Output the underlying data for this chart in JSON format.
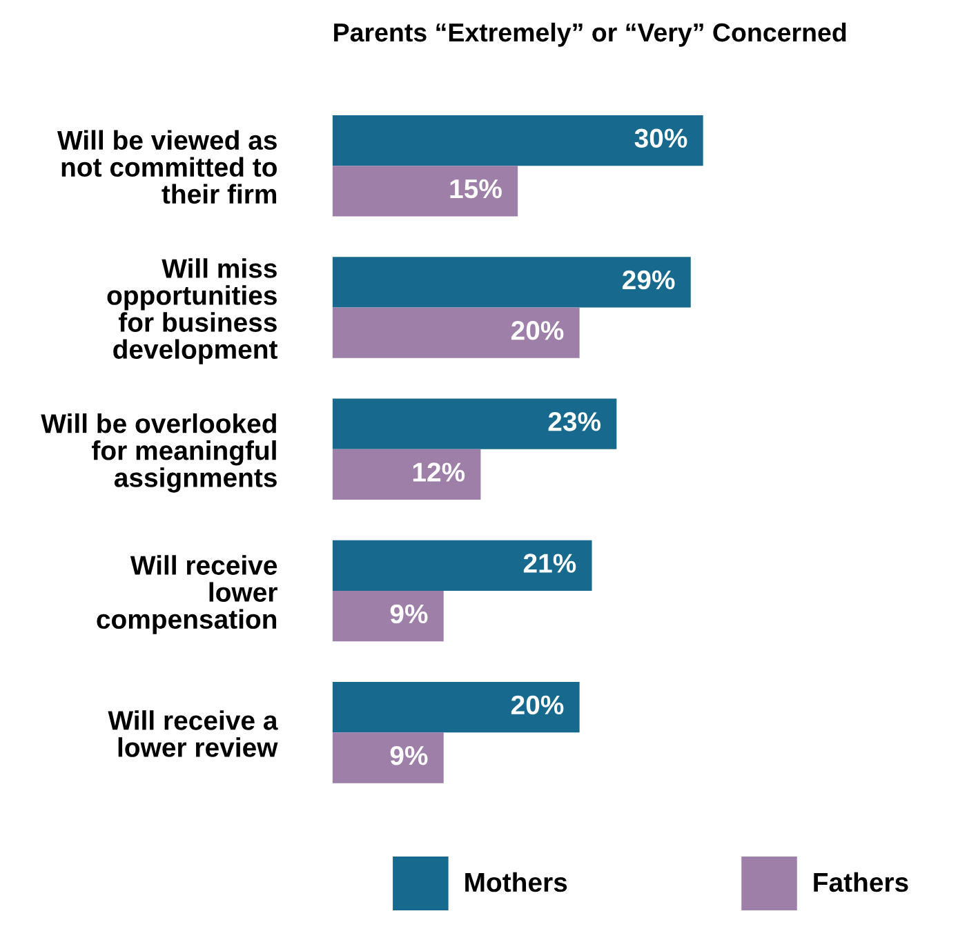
{
  "chart_data": {
    "type": "bar",
    "orientation": "horizontal",
    "title": "Parents “Extremely” or “Very” Concerned",
    "categories": [
      "Will be viewed as\nnot committed to\ntheir firm",
      "Will miss\nopportunities\nfor business\ndevelopment",
      "Will be overlooked\nfor meaningful\nassignments",
      "Will receive\nlower\ncompensation",
      "Will receive a\nlower review"
    ],
    "series": [
      {
        "name": "Mothers",
        "color": "#17698e",
        "values": [
          30,
          29,
          23,
          21,
          20
        ],
        "value_labels": [
          "30%",
          "29%",
          "23%",
          "21%",
          "20%"
        ]
      },
      {
        "name": "Fathers",
        "color": "#9e7fa8",
        "values": [
          15,
          20,
          12,
          9,
          9
        ],
        "value_labels": [
          "15%",
          "20%",
          "12%",
          "9%",
          "9%"
        ]
      }
    ],
    "legend": "bottom",
    "grid": false,
    "tick_labels": "y"
  }
}
